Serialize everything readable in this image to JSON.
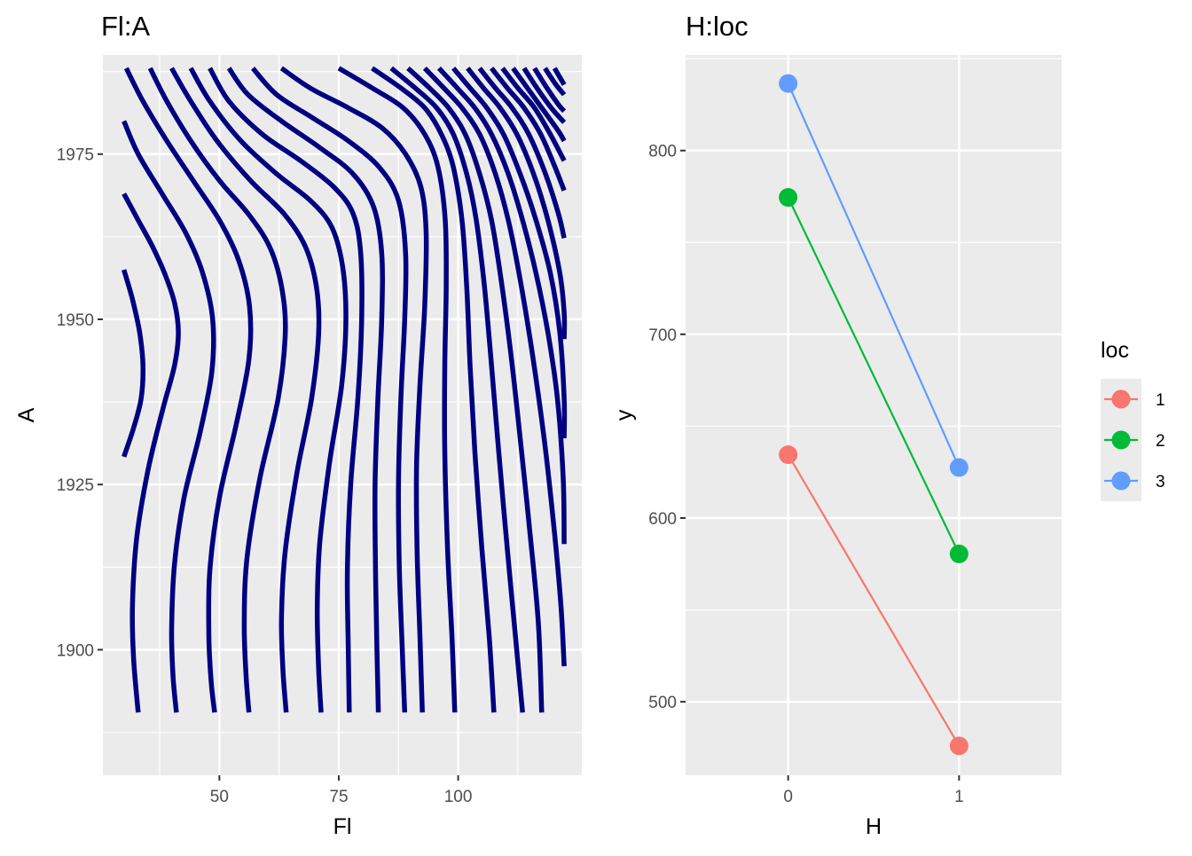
{
  "chart_data": [
    {
      "type": "contour",
      "title": "Fl:A",
      "xlabel": "Fl",
      "ylabel": "A",
      "xlim": [
        25.6,
        125.9
      ],
      "ylim": [
        1881.0,
        1990.0
      ],
      "x_ticks": [
        50,
        75,
        100
      ],
      "y_ticks": [
        1900,
        1925,
        1950,
        1975
      ],
      "grid": true,
      "line_color": "#000080",
      "contours": [
        [
          [
            30.0,
            1957.5
          ],
          [
            31.8,
            1953.0
          ],
          [
            33.3,
            1948.0
          ],
          [
            34.0,
            1943.0
          ],
          [
            33.6,
            1938.0
          ],
          [
            32.0,
            1933.5
          ],
          [
            30.0,
            1929.2
          ]
        ],
        [
          [
            30.0,
            1969.0
          ],
          [
            33.0,
            1965.0
          ],
          [
            36.0,
            1961.0
          ],
          [
            38.5,
            1957.0
          ],
          [
            40.6,
            1952.5
          ],
          [
            41.4,
            1948.0
          ],
          [
            40.6,
            1943.0
          ],
          [
            38.0,
            1936.0
          ],
          [
            35.0,
            1927.0
          ],
          [
            32.7,
            1917.0
          ],
          [
            31.8,
            1907.0
          ],
          [
            32.0,
            1899.0
          ],
          [
            33.0,
            1890.5
          ]
        ],
        [
          [
            30.0,
            1980.0
          ],
          [
            33.0,
            1975.0
          ],
          [
            38.0,
            1969.0
          ],
          [
            43.0,
            1963.0
          ],
          [
            46.5,
            1957.0
          ],
          [
            48.6,
            1950.0
          ],
          [
            48.4,
            1942.0
          ],
          [
            46.0,
            1933.0
          ],
          [
            42.6,
            1923.0
          ],
          [
            40.6,
            1913.0
          ],
          [
            40.0,
            1903.0
          ],
          [
            40.3,
            1896.0
          ],
          [
            41.0,
            1890.5
          ]
        ],
        [
          [
            30.5,
            1988.0
          ],
          [
            34.0,
            1983.0
          ],
          [
            39.0,
            1977.0
          ],
          [
            44.5,
            1971.0
          ],
          [
            50.0,
            1965.0
          ],
          [
            54.0,
            1959.0
          ],
          [
            56.3,
            1952.0
          ],
          [
            56.2,
            1944.0
          ],
          [
            53.5,
            1934.0
          ],
          [
            50.0,
            1923.0
          ],
          [
            48.0,
            1912.0
          ],
          [
            47.8,
            1902.0
          ],
          [
            48.3,
            1895.0
          ],
          [
            49.0,
            1890.5
          ]
        ],
        [
          [
            35.5,
            1988.0
          ],
          [
            39.0,
            1983.0
          ],
          [
            44.0,
            1977.0
          ],
          [
            50.0,
            1971.0
          ],
          [
            56.0,
            1966.0
          ],
          [
            60.5,
            1961.0
          ],
          [
            63.0,
            1955.0
          ],
          [
            63.8,
            1948.0
          ],
          [
            62.3,
            1938.0
          ],
          [
            58.5,
            1926.0
          ],
          [
            55.8,
            1914.0
          ],
          [
            55.2,
            1904.0
          ],
          [
            55.6,
            1896.0
          ],
          [
            56.2,
            1890.5
          ]
        ],
        [
          [
            40.0,
            1988.0
          ],
          [
            44.0,
            1983.0
          ],
          [
            49.5,
            1977.0
          ],
          [
            56.5,
            1971.0
          ],
          [
            63.5,
            1966.0
          ],
          [
            68.0,
            1961.0
          ],
          [
            70.3,
            1955.0
          ],
          [
            70.8,
            1948.0
          ],
          [
            69.3,
            1938.0
          ],
          [
            66.3,
            1927.0
          ],
          [
            63.8,
            1915.0
          ],
          [
            63.0,
            1905.0
          ],
          [
            63.3,
            1897.0
          ],
          [
            64.0,
            1890.5
          ]
        ],
        [
          [
            44.0,
            1988.0
          ],
          [
            48.0,
            1983.0
          ],
          [
            54.5,
            1977.0
          ],
          [
            62.0,
            1972.0
          ],
          [
            69.0,
            1968.0
          ],
          [
            73.5,
            1964.0
          ],
          [
            75.8,
            1958.0
          ],
          [
            76.5,
            1950.0
          ],
          [
            75.6,
            1940.0
          ],
          [
            73.0,
            1928.0
          ],
          [
            71.0,
            1916.0
          ],
          [
            70.5,
            1906.0
          ],
          [
            70.8,
            1897.0
          ],
          [
            71.3,
            1890.5
          ]
        ],
        [
          [
            48.0,
            1988.0
          ],
          [
            52.0,
            1983.0
          ],
          [
            59.0,
            1978.0
          ],
          [
            67.0,
            1974.0
          ],
          [
            74.0,
            1970.0
          ],
          [
            78.0,
            1966.0
          ],
          [
            79.6,
            1960.0
          ],
          [
            79.8,
            1950.0
          ],
          [
            79.0,
            1938.0
          ],
          [
            77.5,
            1925.0
          ],
          [
            76.8,
            1912.0
          ],
          [
            77.0,
            1900.0
          ],
          [
            77.2,
            1890.5
          ]
        ],
        [
          [
            52.0,
            1988.0
          ],
          [
            56.0,
            1984.0
          ],
          [
            63.0,
            1980.0
          ],
          [
            71.0,
            1976.0
          ],
          [
            78.0,
            1972.0
          ],
          [
            82.3,
            1967.0
          ],
          [
            84.0,
            1960.0
          ],
          [
            84.0,
            1950.0
          ],
          [
            83.2,
            1938.0
          ],
          [
            82.6,
            1925.0
          ],
          [
            82.7,
            1912.0
          ],
          [
            83.0,
            1900.0
          ],
          [
            83.3,
            1890.5
          ]
        ],
        [
          [
            57.0,
            1988.0
          ],
          [
            62.0,
            1984.0
          ],
          [
            69.5,
            1980.5
          ],
          [
            77.0,
            1977.0
          ],
          [
            83.5,
            1973.0
          ],
          [
            87.5,
            1968.0
          ],
          [
            89.0,
            1960.0
          ],
          [
            88.8,
            1950.0
          ],
          [
            88.0,
            1938.0
          ],
          [
            87.5,
            1925.0
          ],
          [
            87.7,
            1912.0
          ],
          [
            88.3,
            1900.0
          ],
          [
            88.8,
            1890.5
          ]
        ],
        [
          [
            63.0,
            1988.0
          ],
          [
            69.0,
            1985.0
          ],
          [
            77.0,
            1982.0
          ],
          [
            84.0,
            1979.0
          ],
          [
            89.0,
            1975.0
          ],
          [
            92.2,
            1970.0
          ],
          [
            93.3,
            1963.0
          ],
          [
            93.0,
            1952.0
          ],
          [
            92.0,
            1940.0
          ],
          [
            91.3,
            1928.0
          ],
          [
            91.4,
            1915.0
          ],
          [
            92.0,
            1902.0
          ],
          [
            92.5,
            1890.5
          ]
        ],
        [
          [
            75.0,
            1988.0
          ],
          [
            82.0,
            1985.0
          ],
          [
            88.5,
            1982.0
          ],
          [
            93.0,
            1978.0
          ],
          [
            95.8,
            1973.0
          ],
          [
            97.3,
            1965.0
          ],
          [
            97.5,
            1955.0
          ],
          [
            97.2,
            1943.0
          ],
          [
            97.2,
            1930.0
          ],
          [
            97.8,
            1915.0
          ],
          [
            98.7,
            1902.0
          ],
          [
            99.3,
            1890.5
          ]
        ],
        [
          [
            82.0,
            1988.0
          ],
          [
            88.0,
            1985.0
          ],
          [
            93.0,
            1982.0
          ],
          [
            96.5,
            1978.0
          ],
          [
            99.0,
            1973.0
          ],
          [
            100.8,
            1965.0
          ],
          [
            101.8,
            1955.0
          ],
          [
            102.5,
            1943.0
          ],
          [
            103.5,
            1930.0
          ],
          [
            105.0,
            1915.0
          ],
          [
            106.5,
            1902.0
          ],
          [
            107.5,
            1890.5
          ]
        ],
        [
          [
            86.0,
            1988.0
          ],
          [
            91.0,
            1985.0
          ],
          [
            95.5,
            1982.0
          ],
          [
            99.0,
            1978.0
          ],
          [
            101.8,
            1972.0
          ],
          [
            103.8,
            1965.0
          ],
          [
            105.5,
            1955.0
          ],
          [
            107.0,
            1943.0
          ],
          [
            108.5,
            1930.0
          ],
          [
            110.2,
            1916.0
          ],
          [
            112.0,
            1902.0
          ],
          [
            113.5,
            1890.5
          ]
        ],
        [
          [
            89.5,
            1988.0
          ],
          [
            94.0,
            1985.0
          ],
          [
            98.0,
            1982.0
          ],
          [
            101.5,
            1978.0
          ],
          [
            104.5,
            1972.0
          ],
          [
            107.0,
            1965.0
          ],
          [
            109.0,
            1956.0
          ],
          [
            111.0,
            1945.0
          ],
          [
            113.0,
            1932.0
          ],
          [
            115.0,
            1918.0
          ],
          [
            116.8,
            1904.0
          ],
          [
            117.5,
            1890.5
          ]
        ],
        [
          [
            93.0,
            1988.0
          ],
          [
            97.0,
            1985.0
          ],
          [
            100.8,
            1982.0
          ],
          [
            104.5,
            1978.0
          ],
          [
            107.8,
            1972.0
          ],
          [
            110.5,
            1965.0
          ],
          [
            113.0,
            1956.0
          ],
          [
            115.5,
            1945.0
          ],
          [
            118.0,
            1932.0
          ],
          [
            120.0,
            1919.0
          ],
          [
            121.5,
            1907.0
          ],
          [
            122.2,
            1897.5
          ]
        ],
        [
          [
            96.0,
            1988.0
          ],
          [
            99.8,
            1985.0
          ],
          [
            103.5,
            1982.0
          ],
          [
            107.0,
            1978.0
          ],
          [
            110.5,
            1972.0
          ],
          [
            113.5,
            1965.0
          ],
          [
            116.3,
            1957.0
          ],
          [
            118.8,
            1948.0
          ],
          [
            120.8,
            1938.0
          ],
          [
            122.0,
            1926.0
          ],
          [
            122.2,
            1916.0
          ]
        ],
        [
          [
            99.0,
            1988.0
          ],
          [
            102.5,
            1985.0
          ],
          [
            106.0,
            1982.0
          ],
          [
            109.5,
            1978.0
          ],
          [
            113.0,
            1972.0
          ],
          [
            116.3,
            1965.0
          ],
          [
            119.3,
            1957.0
          ],
          [
            121.3,
            1948.0
          ],
          [
            122.2,
            1938.0
          ],
          [
            122.2,
            1932.0
          ]
        ],
        [
          [
            102.0,
            1988.0
          ],
          [
            105.3,
            1985.0
          ],
          [
            108.8,
            1982.0
          ],
          [
            112.3,
            1978.0
          ],
          [
            115.8,
            1972.0
          ],
          [
            118.8,
            1965.0
          ],
          [
            121.3,
            1957.0
          ],
          [
            122.2,
            1951.0
          ],
          [
            122.2,
            1947.0
          ]
        ],
        [
          [
            104.5,
            1988.0
          ],
          [
            107.8,
            1985.0
          ],
          [
            111.3,
            1982.0
          ],
          [
            114.8,
            1978.0
          ],
          [
            118.3,
            1972.0
          ],
          [
            121.0,
            1966.0
          ],
          [
            122.2,
            1962.3
          ]
        ],
        [
          [
            107.0,
            1988.0
          ],
          [
            110.3,
            1985.0
          ],
          [
            113.8,
            1982.0
          ],
          [
            117.3,
            1978.0
          ],
          [
            120.3,
            1973.0
          ],
          [
            122.2,
            1969.5
          ]
        ],
        [
          [
            109.3,
            1988.0
          ],
          [
            112.5,
            1985.0
          ],
          [
            116.0,
            1982.0
          ],
          [
            119.3,
            1978.0
          ],
          [
            122.2,
            1974.0
          ]
        ],
        [
          [
            111.5,
            1988.0
          ],
          [
            114.5,
            1985.0
          ],
          [
            118.0,
            1981.5
          ],
          [
            121.0,
            1978.5
          ],
          [
            122.2,
            1977.0
          ]
        ],
        [
          [
            113.8,
            1988.0
          ],
          [
            116.5,
            1985.0
          ],
          [
            119.5,
            1982.0
          ],
          [
            122.2,
            1979.8
          ]
        ],
        [
          [
            116.0,
            1988.0
          ],
          [
            118.6,
            1985.0
          ],
          [
            121.0,
            1982.5
          ],
          [
            122.2,
            1981.5
          ]
        ],
        [
          [
            118.2,
            1988.0
          ],
          [
            120.5,
            1985.5
          ],
          [
            122.2,
            1984.0
          ]
        ],
        [
          [
            120.2,
            1988.0
          ],
          [
            122.2,
            1985.5
          ]
        ]
      ]
    },
    {
      "type": "line",
      "title": "H:loc",
      "xlabel": "H",
      "ylabel": "y",
      "categories": [
        "0",
        "1"
      ],
      "xlim": [
        -0.6,
        1.6
      ],
      "ylim": [
        460,
        852
      ],
      "y_ticks": [
        500,
        600,
        700,
        800
      ],
      "grid": true,
      "legend_title": "loc",
      "legend_position": "right",
      "series": [
        {
          "name": "1",
          "color": "#F8766D",
          "values": [
            634.5,
            476.0
          ]
        },
        {
          "name": "2",
          "color": "#00BA38",
          "values": [
            774.5,
            580.5
          ]
        },
        {
          "name": "3",
          "color": "#619CFF",
          "values": [
            836.5,
            627.5
          ]
        }
      ]
    }
  ]
}
